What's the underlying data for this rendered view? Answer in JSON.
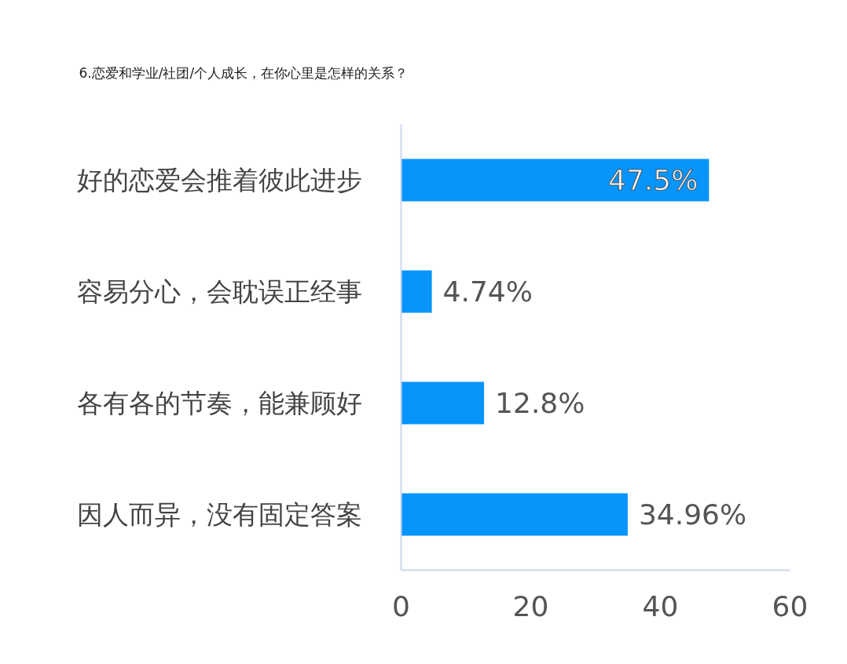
{
  "chart_data": {
    "type": "bar",
    "orientation": "horizontal",
    "title": "6.恋爱和学业/社团/个人成长，在你心里是怎样的关系？",
    "categories": [
      "好的恋爱会推着彼此进步",
      "容易分心，会耽误正经事",
      "各有各的节奏，能兼顾好",
      "因人而异，没有固定答案"
    ],
    "values": [
      47.5,
      4.74,
      12.8,
      34.96
    ],
    "color": "#0794fb",
    "value_labels": [
      "47.5%",
      "4.74%",
      "12.8%",
      "34.96%"
    ],
    "xlim": [
      0,
      60
    ],
    "xticks": [
      0,
      20,
      40,
      60
    ],
    "grid": false
  }
}
